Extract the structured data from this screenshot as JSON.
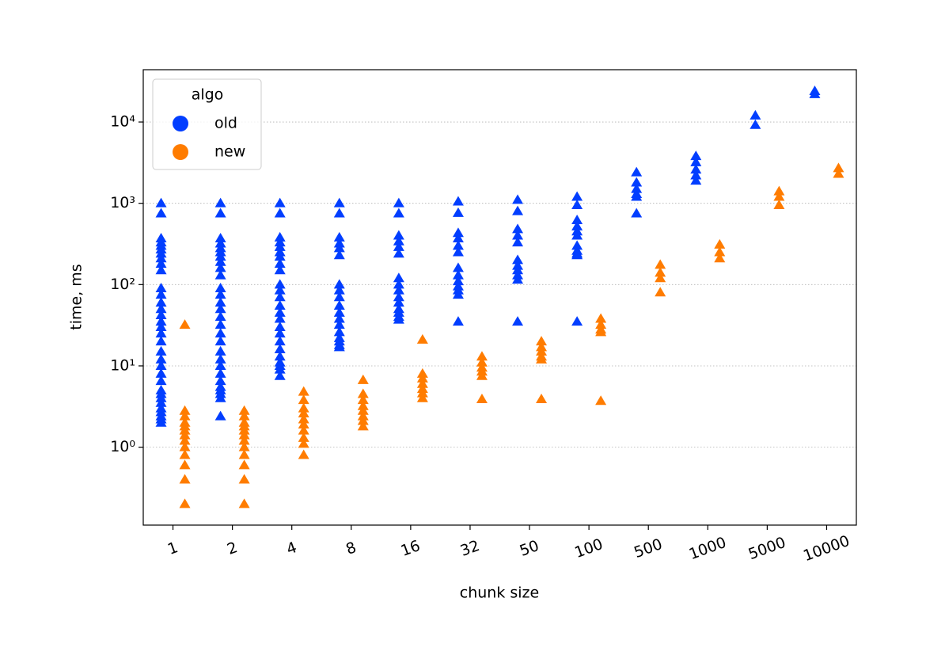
{
  "chart_data": {
    "type": "strip",
    "x_label": "chunk size",
    "y_label": "time, ms",
    "categories": [
      "1",
      "2",
      "4",
      "8",
      "16",
      "32",
      "50",
      "100",
      "500",
      "1000",
      "5000",
      "10000"
    ],
    "log_y": true,
    "ylim": [
      0.11,
      44000
    ],
    "yticks": [
      {
        "value": 1,
        "label": "10⁰"
      },
      {
        "value": 10,
        "label": "10¹"
      },
      {
        "value": 100,
        "label": "10²"
      },
      {
        "value": 1000,
        "label": "10³"
      },
      {
        "value": 10000,
        "label": "10⁴"
      }
    ],
    "grid": true,
    "legend_title": "algo",
    "legend_position": "upper left",
    "series": [
      {
        "name": "old",
        "color": "#023eff",
        "values": [
          [
            1000,
            750,
            370,
            330,
            300,
            270,
            240,
            210,
            180,
            150,
            90,
            75,
            60,
            50,
            42,
            35,
            30,
            25,
            20,
            15,
            12,
            10,
            8,
            6.5,
            5,
            4.5,
            4,
            3.5,
            3,
            2.7,
            2.4,
            2.2,
            2
          ],
          [
            1000,
            750,
            370,
            320,
            280,
            250,
            220,
            190,
            160,
            130,
            90,
            75,
            60,
            50,
            40,
            32,
            25,
            20,
            15,
            12,
            10,
            8,
            6.5,
            5.5,
            5,
            4.5,
            4,
            2.4
          ],
          [
            1000,
            750,
            380,
            330,
            290,
            250,
            220,
            180,
            150,
            100,
            85,
            70,
            55,
            45,
            38,
            30,
            25,
            20,
            16,
            13,
            11,
            10,
            9,
            7.5
          ],
          [
            1000,
            750,
            380,
            320,
            280,
            230,
            100,
            85,
            70,
            55,
            45,
            38,
            32,
            26,
            22,
            20,
            18,
            17
          ],
          [
            1000,
            750,
            400,
            340,
            290,
            240,
            120,
            100,
            85,
            70,
            60,
            50,
            45,
            40,
            37
          ],
          [
            1050,
            760,
            430,
            370,
            300,
            250,
            160,
            130,
            110,
            95,
            85,
            75,
            35
          ],
          [
            1100,
            800,
            480,
            400,
            330,
            200,
            170,
            150,
            130,
            115,
            35
          ],
          [
            1200,
            950,
            620,
            520,
            450,
            400,
            300,
            260,
            240,
            230,
            35
          ],
          [
            2400,
            1800,
            1500,
            1300,
            1200,
            750
          ],
          [
            3800,
            3200,
            2600,
            2200,
            1900
          ],
          [
            12000,
            9200
          ],
          [
            24000,
            22000
          ]
        ]
      },
      {
        "name": "new",
        "color": "#ff7c00",
        "values": [
          [
            32,
            2.8,
            2.4,
            2,
            1.8,
            1.6,
            1.4,
            1.2,
            1,
            0.8,
            0.6,
            0.4,
            0.2
          ],
          [
            2.8,
            2.4,
            2,
            1.8,
            1.6,
            1.4,
            1.2,
            1,
            0.8,
            0.6,
            0.4,
            0.2
          ],
          [
            4.8,
            3.8,
            3,
            2.6,
            2.2,
            1.9,
            1.6,
            1.3,
            1.1,
            0.8
          ],
          [
            6.7,
            4.5,
            3.8,
            3.2,
            2.8,
            2.4,
            2.1,
            1.8
          ],
          [
            21,
            8,
            7,
            6,
            5.2,
            4.6,
            4
          ],
          [
            13,
            11,
            9.5,
            8.5,
            7.5,
            3.9
          ],
          [
            20,
            17,
            15,
            13,
            12,
            3.9
          ],
          [
            38,
            32,
            28,
            26,
            3.7
          ],
          [
            175,
            140,
            120,
            80
          ],
          [
            310,
            250,
            210
          ],
          [
            1400,
            1200,
            950
          ],
          [
            2700,
            2300
          ]
        ]
      }
    ]
  }
}
